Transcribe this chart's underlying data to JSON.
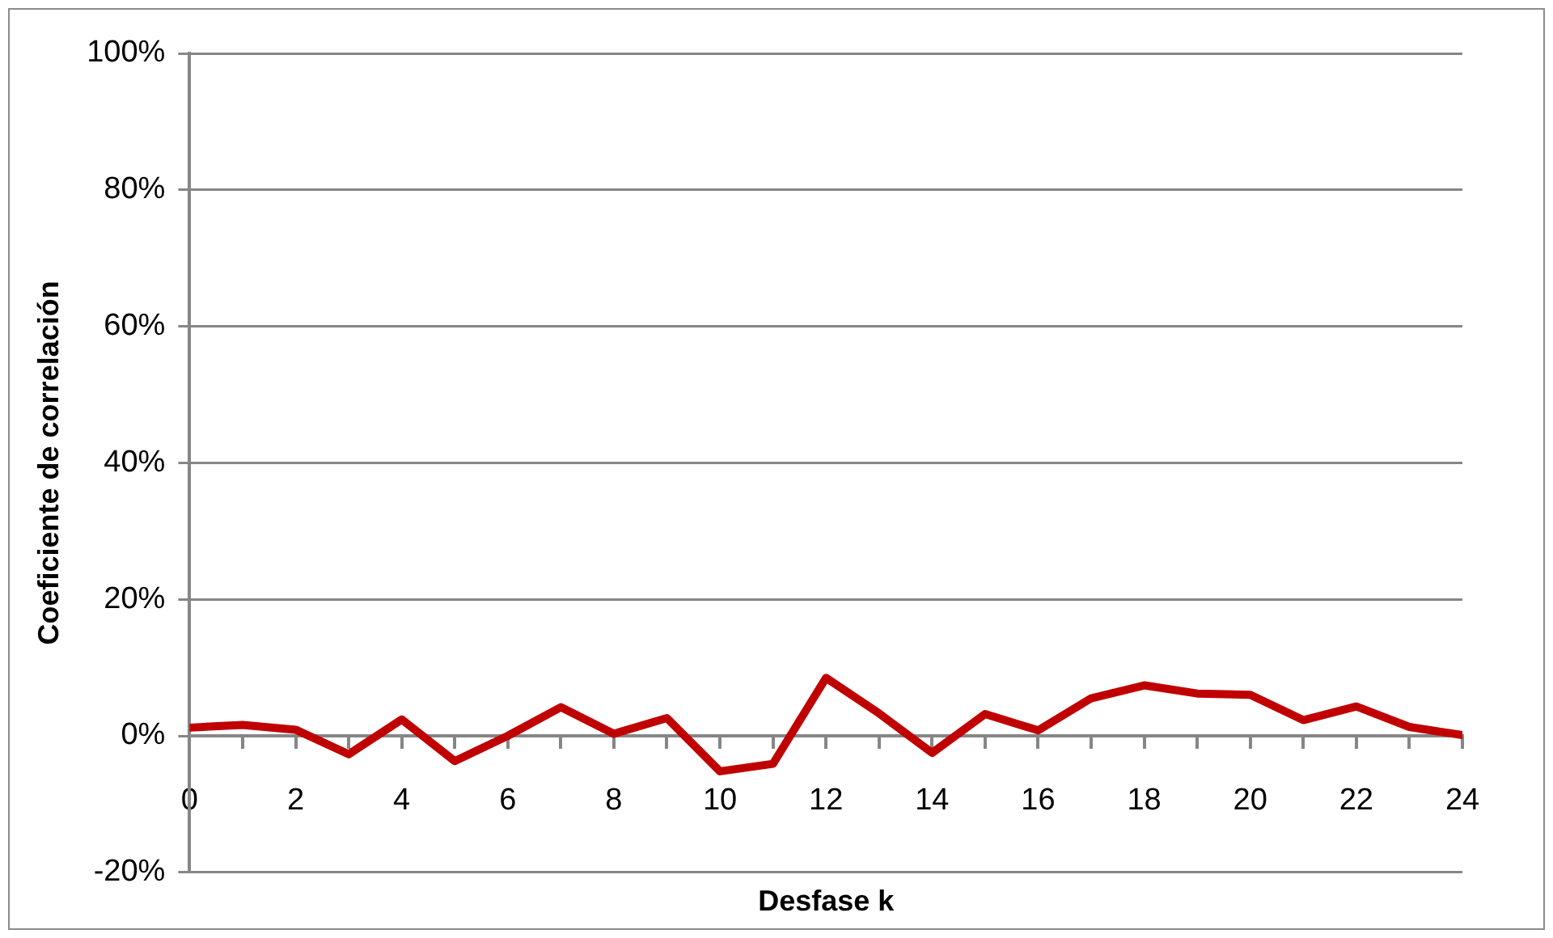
{
  "chart_data": {
    "type": "line",
    "xlabel": "Desfase k",
    "ylabel": "Coeficiente de correlación",
    "x": [
      0,
      1,
      2,
      3,
      4,
      5,
      6,
      7,
      8,
      9,
      10,
      11,
      12,
      13,
      14,
      15,
      16,
      17,
      18,
      19,
      20,
      21,
      22,
      23,
      24
    ],
    "series": [
      {
        "color": "#c00000",
        "values": [
          1.2,
          1.6,
          0.9,
          -2.7,
          2.4,
          -3.7,
          0,
          4.2,
          0.3,
          2.6,
          -5.2,
          -4.1,
          8.5,
          3.3,
          -2.5,
          3.2,
          0.8,
          5.5,
          7.4,
          6.2,
          6.0,
          2.3,
          4.3,
          1.3,
          0.1
        ]
      }
    ],
    "xlim": [
      0,
      24
    ],
    "xticks": [
      0,
      {
        "value": 1,
        "label": null
      },
      2,
      {
        "value": 3,
        "label": null
      },
      4,
      {
        "value": 5,
        "label": null
      },
      6,
      {
        "value": 7,
        "label": null
      },
      8,
      {
        "value": 9,
        "label": null
      },
      10,
      {
        "value": 11,
        "label": null
      },
      12,
      {
        "value": 13,
        "label": null
      },
      14,
      {
        "value": 15,
        "label": null
      },
      16,
      {
        "value": 17,
        "label": null
      },
      18,
      {
        "value": 19,
        "label": null
      },
      20,
      {
        "value": 21,
        "label": null
      },
      22,
      {
        "value": 23,
        "label": null
      },
      24
    ],
    "ylim": [
      -20,
      100
    ],
    "yticks": [
      {
        "value": -20,
        "label": "-20%"
      },
      {
        "value": 0,
        "label": "0%"
      },
      {
        "value": 20,
        "label": "20%"
      },
      {
        "value": 40,
        "label": "40%"
      },
      {
        "value": 60,
        "label": "60%"
      },
      {
        "value": 80,
        "label": "80%"
      },
      {
        "value": 100,
        "label": "100%"
      }
    ],
    "grid": "y",
    "legend": false,
    "marker": "none",
    "line_style": "solid"
  }
}
